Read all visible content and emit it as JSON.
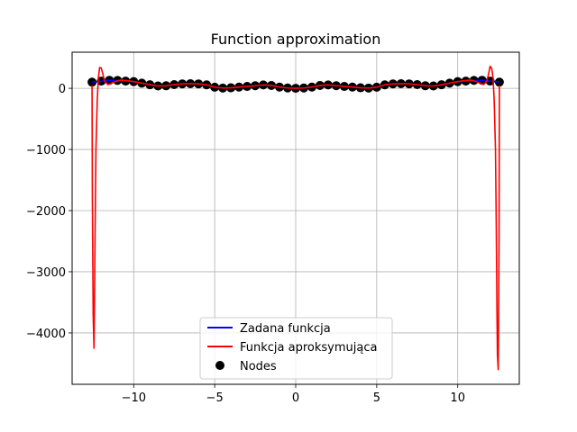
{
  "chart_data": {
    "type": "line",
    "title": "Function approximation",
    "xlabel": "",
    "ylabel": "",
    "xlim": [
      -13.8,
      13.8
    ],
    "ylim": [
      -4840,
      590
    ],
    "xticks": [
      -10,
      -5,
      0,
      5,
      10
    ],
    "xtick_labels": [
      "−10",
      "−5",
      "0",
      "5",
      "10"
    ],
    "yticks": [
      0,
      -1000,
      -2000,
      -3000,
      -4000
    ],
    "ytick_labels": [
      "0",
      "−1000",
      "−2000",
      "−3000",
      "−4000"
    ],
    "grid": true,
    "legend_position": "lower center",
    "series": [
      {
        "name": "Zadana funkcja",
        "kind": "line",
        "color": "#0000ff",
        "x": [
          -12.57,
          -12.0,
          -11.5,
          -11.0,
          -10.5,
          -10.0,
          -9.5,
          -9.0,
          -8.5,
          -8.0,
          -7.5,
          -7.0,
          -6.5,
          -6.0,
          -5.5,
          -5.0,
          -4.5,
          -4.0,
          -3.5,
          -3.0,
          -2.5,
          -2.0,
          -1.5,
          -1.0,
          -0.5,
          0.0,
          0.5,
          1.0,
          1.5,
          2.0,
          2.5,
          3.0,
          3.5,
          4.0,
          4.5,
          5.0,
          5.5,
          6.0,
          6.5,
          7.0,
          7.5,
          8.0,
          8.5,
          9.0,
          9.5,
          10.0,
          10.5,
          11.0,
          11.5,
          12.0,
          12.57
        ],
        "y": [
          100,
          117,
          131,
          128,
          117,
          109,
          84,
          58,
          38,
          41,
          60,
          72,
          75,
          72,
          56,
          18,
          4,
          8,
          20,
          30,
          42,
          55,
          46,
          20,
          5,
          0,
          5,
          20,
          46,
          55,
          42,
          30,
          20,
          8,
          4,
          18,
          56,
          72,
          75,
          72,
          60,
          41,
          38,
          58,
          84,
          109,
          117,
          128,
          131,
          117,
          100
        ]
      },
      {
        "name": "Funkcja aproksymująca",
        "kind": "line",
        "color": "#ff0000",
        "x": [
          -12.57,
          -12.55,
          -12.5,
          -12.45,
          -12.42,
          -12.38,
          -12.33,
          -12.25,
          -12.18,
          -12.1,
          -12.0,
          -11.9,
          -11.8,
          -11.6,
          -11.2,
          -10.8,
          -10.4,
          -10.0,
          -9.5,
          -9.0,
          -8.5,
          -8.0,
          -7.5,
          -7.0,
          -6.5,
          -6.0,
          -5.5,
          -5.0,
          -4.5,
          -4.0,
          -3.5,
          -3.0,
          -2.5,
          -2.0,
          -1.5,
          -1.0,
          -0.5,
          0.0,
          0.5,
          1.0,
          1.5,
          2.0,
          2.5,
          3.0,
          3.5,
          4.0,
          4.5,
          5.0,
          5.5,
          6.0,
          6.5,
          7.0,
          7.5,
          8.0,
          8.5,
          9.0,
          9.5,
          10.0,
          10.4,
          10.8,
          11.2,
          11.6,
          11.8,
          11.9,
          12.0,
          12.1,
          12.18,
          12.25,
          12.33,
          12.38,
          12.42,
          12.45,
          12.5,
          12.55,
          12.57
        ],
        "y": [
          50,
          -1800,
          -3700,
          -4250,
          -3500,
          -2300,
          -1000,
          -200,
          170,
          340,
          330,
          230,
          120,
          60,
          105,
          135,
          125,
          109,
          84,
          58,
          38,
          41,
          60,
          72,
          75,
          72,
          56,
          18,
          4,
          8,
          20,
          30,
          42,
          55,
          46,
          20,
          5,
          0,
          5,
          20,
          46,
          55,
          42,
          30,
          20,
          8,
          4,
          18,
          56,
          72,
          75,
          72,
          60,
          41,
          38,
          58,
          84,
          109,
          125,
          135,
          105,
          60,
          120,
          230,
          360,
          320,
          170,
          -200,
          -1000,
          -2300,
          -3600,
          -4350,
          -4600,
          -2500,
          50
        ]
      },
      {
        "name": "Nodes",
        "kind": "scatter",
        "color": "#000000",
        "x": [
          -12.57,
          -12.0,
          -11.5,
          -11.0,
          -10.5,
          -10.0,
          -9.5,
          -9.0,
          -8.5,
          -8.0,
          -7.5,
          -7.0,
          -6.5,
          -6.0,
          -5.5,
          -5.0,
          -4.5,
          -4.0,
          -3.5,
          -3.0,
          -2.5,
          -2.0,
          -1.5,
          -1.0,
          -0.5,
          0.0,
          0.5,
          1.0,
          1.5,
          2.0,
          2.5,
          3.0,
          3.5,
          4.0,
          4.5,
          5.0,
          5.5,
          6.0,
          6.5,
          7.0,
          7.5,
          8.0,
          8.5,
          9.0,
          9.5,
          10.0,
          10.5,
          11.0,
          11.5,
          12.0,
          12.57
        ],
        "y": [
          100,
          117,
          131,
          128,
          117,
          109,
          84,
          58,
          38,
          41,
          60,
          72,
          75,
          72,
          56,
          18,
          4,
          8,
          20,
          30,
          42,
          55,
          46,
          20,
          5,
          0,
          5,
          20,
          46,
          55,
          42,
          30,
          20,
          8,
          4,
          18,
          56,
          72,
          75,
          72,
          60,
          41,
          38,
          58,
          84,
          109,
          117,
          128,
          131,
          117,
          100
        ]
      }
    ]
  }
}
